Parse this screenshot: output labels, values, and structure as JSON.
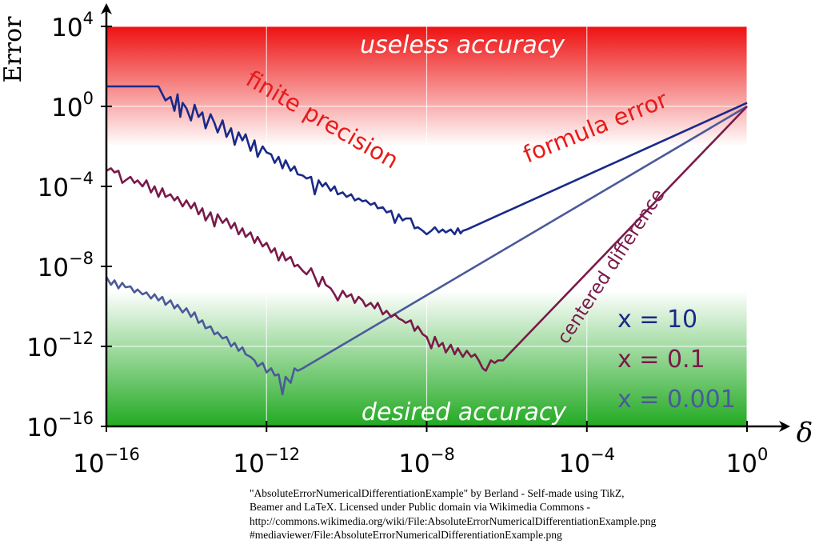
{
  "chart_data": {
    "type": "line",
    "title": "",
    "xlabel": "δ",
    "ylabel": "Error",
    "x_scale": "log",
    "y_scale": "log",
    "xlim": [
      1e-16,
      1
    ],
    "ylim": [
      1e-16,
      10000
    ],
    "x_ticks": [
      {
        "value": 1e-16,
        "base": "10",
        "exp": "−16"
      },
      {
        "value": 1e-12,
        "base": "10",
        "exp": "−12"
      },
      {
        "value": 1e-08,
        "base": "10",
        "exp": "−8"
      },
      {
        "value": 0.0001,
        "base": "10",
        "exp": "−4"
      },
      {
        "value": 1,
        "base": "10",
        "exp": "0"
      }
    ],
    "y_ticks": [
      {
        "value": 10000,
        "base": "10",
        "exp": "4"
      },
      {
        "value": 1,
        "base": "10",
        "exp": "0"
      },
      {
        "value": 0.0001,
        "base": "10",
        "exp": "−4"
      },
      {
        "value": 1e-08,
        "base": "10",
        "exp": "−8"
      },
      {
        "value": 1e-12,
        "base": "10",
        "exp": "−12"
      },
      {
        "value": 1e-16,
        "base": "10",
        "exp": "−16"
      }
    ],
    "grid": true,
    "background_gradient": {
      "top": "#ee1111",
      "middle": "#ffffff",
      "bottom": "#22aa22"
    },
    "series": [
      {
        "name": "x = 10",
        "color": "#1a2a88",
        "points": [
          [
            1e-16,
            10
          ],
          [
            2e-15,
            10
          ],
          [
            3e-15,
            2
          ],
          [
            4e-15,
            3
          ],
          [
            5e-15,
            0.6
          ],
          [
            6e-15,
            4
          ],
          [
            7e-15,
            0.3
          ],
          [
            8e-15,
            1.5
          ],
          [
            1e-14,
            0.8
          ],
          [
            1.3e-14,
            0.2
          ],
          [
            1.6e-14,
            1.2
          ],
          [
            2e-14,
            0.3
          ],
          [
            2.5e-14,
            0.5
          ],
          [
            3e-14,
            0.08
          ],
          [
            4e-14,
            0.4
          ],
          [
            5e-14,
            0.15
          ],
          [
            6e-14,
            0.05
          ],
          [
            8e-14,
            0.2
          ],
          [
            1e-13,
            0.03
          ],
          [
            1.3e-13,
            0.08
          ],
          [
            1.6e-13,
            0.012
          ],
          [
            2e-13,
            0.05
          ],
          [
            2.5e-13,
            0.02
          ],
          [
            3e-13,
            0.04
          ],
          [
            4e-13,
            0.006
          ],
          [
            5e-13,
            0.02
          ],
          [
            6e-13,
            0.003
          ],
          [
            8e-13,
            0.01
          ],
          [
            1e-12,
            0.005
          ],
          [
            1.3e-12,
            0.004
          ],
          [
            1.6e-12,
            0.0015
          ],
          [
            2e-12,
            0.003
          ],
          [
            2.5e-12,
            0.0008
          ],
          [
            3e-12,
            0.002
          ],
          [
            4e-12,
            0.0006
          ],
          [
            5e-12,
            0.001
          ],
          [
            6e-12,
            0.0004
          ],
          [
            8e-12,
            0.00035
          ],
          [
            1e-11,
            0.00025
          ],
          [
            1.3e-11,
            0.0003
          ],
          [
            1.6e-11,
            4e-05
          ],
          [
            2e-11,
            0.0002
          ],
          [
            2.5e-11,
            0.0001
          ],
          [
            3e-11,
            0.00015
          ],
          [
            4e-11,
            6e-05
          ],
          [
            5e-11,
            0.0001
          ],
          [
            6e-11,
            4e-05
          ],
          [
            8e-11,
            5e-05
          ],
          [
            1e-10,
            3e-05
          ],
          [
            1.3e-10,
            4e-05
          ],
          [
            1.6e-10,
            2e-05
          ],
          [
            2e-10,
            2.5e-05
          ],
          [
            2.5e-10,
            1.8e-05
          ],
          [
            3e-10,
            2e-05
          ],
          [
            4e-10,
            1.2e-05
          ],
          [
            5e-10,
            1.5e-05
          ],
          [
            6e-10,
            8e-06
          ],
          [
            8e-10,
            9e-06
          ],
          [
            1e-09,
            5e-06
          ],
          [
            1.3e-09,
            6e-06
          ],
          [
            1.6e-09,
            1.5e-06
          ],
          [
            2e-09,
            4e-06
          ],
          [
            2.5e-09,
            2e-06
          ],
          [
            3e-09,
            2.5e-06
          ],
          [
            4e-09,
            2.5e-06
          ],
          [
            5e-09,
            8e-07
          ],
          [
            6e-09,
            9e-07
          ],
          [
            8e-09,
            6e-07
          ],
          [
            1e-08,
            4e-07
          ],
          [
            1.3e-08,
            6e-07
          ],
          [
            1.6e-08,
            9e-07
          ],
          [
            2e-08,
            5e-07
          ],
          [
            2.5e-08,
            7e-07
          ],
          [
            3e-08,
            5e-07
          ],
          [
            4e-08,
            7e-07
          ],
          [
            5e-08,
            4e-07
          ],
          [
            6e-08,
            8e-07
          ],
          [
            7e-08,
            4.5e-07
          ],
          [
            8e-08,
            6e-07
          ],
          [
            1e-07,
            7e-07
          ],
          [
            1,
            1.5
          ]
        ]
      },
      {
        "name": "x = 0.1",
        "color": "#7a1a4a",
        "points": [
          [
            1e-16,
            0.0006
          ],
          [
            1.3e-16,
            0.0008
          ],
          [
            1.6e-16,
            0.0005
          ],
          [
            2e-16,
            0.0006
          ],
          [
            2.5e-16,
            0.00015
          ],
          [
            3e-16,
            0.0002
          ],
          [
            4e-16,
            0.0003
          ],
          [
            5e-16,
            0.00015
          ],
          [
            6e-16,
            0.0002
          ],
          [
            8e-16,
            0.0001
          ],
          [
            1e-15,
            0.0002
          ],
          [
            1.3e-15,
            5e-05
          ],
          [
            1.6e-15,
            0.0001
          ],
          [
            2e-15,
            3e-05
          ],
          [
            2.5e-15,
            8e-05
          ],
          [
            3e-15,
            3e-05
          ],
          [
            4e-15,
            4e-05
          ],
          [
            5e-15,
            2e-05
          ],
          [
            6e-15,
            3e-05
          ],
          [
            8e-15,
            1e-05
          ],
          [
            1e-14,
            2e-05
          ],
          [
            1.3e-14,
            8e-06
          ],
          [
            1.6e-14,
            1.5e-05
          ],
          [
            2e-14,
            4e-06
          ],
          [
            2.5e-14,
            8e-06
          ],
          [
            3e-14,
            2e-06
          ],
          [
            4e-14,
            5e-06
          ],
          [
            5e-14,
            1e-06
          ],
          [
            6e-14,
            4e-06
          ],
          [
            8e-14,
            1.5e-06
          ],
          [
            1e-13,
            2.5e-06
          ],
          [
            1.3e-13,
            8e-07
          ],
          [
            1.6e-13,
            1.5e-06
          ],
          [
            2e-13,
            4e-07
          ],
          [
            2.5e-13,
            8e-07
          ],
          [
            3e-13,
            3e-07
          ],
          [
            4e-13,
            5e-07
          ],
          [
            5e-13,
            1.5e-07
          ],
          [
            6e-13,
            3e-07
          ],
          [
            8e-13,
            1e-07
          ],
          [
            1e-12,
            1.5e-07
          ],
          [
            1.3e-12,
            5e-08
          ],
          [
            1.6e-12,
            8e-08
          ],
          [
            2e-12,
            2e-08
          ],
          [
            2.5e-12,
            5e-08
          ],
          [
            3e-12,
            2e-08
          ],
          [
            4e-12,
            3e-08
          ],
          [
            5e-12,
            1e-08
          ],
          [
            6e-12,
            1.2e-08
          ],
          [
            8e-12,
            6e-09
          ],
          [
            1e-11,
            4e-09
          ],
          [
            1.3e-11,
            8e-09
          ],
          [
            1.6e-11,
            3e-09
          ],
          [
            2e-11,
            1e-09
          ],
          [
            2.5e-11,
            3e-09
          ],
          [
            3e-11,
            1.2e-09
          ],
          [
            4e-11,
            8e-10
          ],
          [
            5e-11,
            4e-10
          ],
          [
            6e-11,
            2e-10
          ],
          [
            8e-11,
            6e-10
          ],
          [
            1e-10,
            3e-10
          ],
          [
            1.3e-10,
            4e-10
          ],
          [
            1.6e-10,
            1.5e-10
          ],
          [
            2e-10,
            3e-10
          ],
          [
            2.5e-10,
            2e-10
          ],
          [
            3e-10,
            1e-10
          ],
          [
            4e-10,
            1.5e-10
          ],
          [
            5e-10,
            8e-11
          ],
          [
            6e-10,
            1.5e-10
          ],
          [
            8e-10,
            4e-11
          ],
          [
            1e-09,
            6e-11
          ],
          [
            1.3e-09,
            3e-11
          ],
          [
            1.6e-09,
            4e-11
          ],
          [
            2e-09,
            2.5e-11
          ],
          [
            2.5e-09,
            2e-11
          ],
          [
            3e-09,
            1.5e-11
          ],
          [
            4e-09,
            2e-11
          ],
          [
            5e-09,
            6e-12
          ],
          [
            6e-09,
            1e-11
          ],
          [
            8e-09,
            4e-12
          ],
          [
            1e-08,
            3e-12
          ],
          [
            1.3e-08,
            8e-13
          ],
          [
            1.6e-08,
            3e-12
          ],
          [
            2e-08,
            1e-12
          ],
          [
            2.5e-08,
            1.5e-12
          ],
          [
            3e-08,
            5e-13
          ],
          [
            4e-08,
            1.2e-12
          ],
          [
            5e-08,
            4e-13
          ],
          [
            6e-08,
            8e-13
          ],
          [
            8e-08,
            3e-13
          ],
          [
            1e-07,
            6e-13
          ],
          [
            1.3e-07,
            3e-13
          ],
          [
            1.6e-07,
            4e-13
          ],
          [
            2e-07,
            2e-13
          ],
          [
            2.5e-07,
            8e-14
          ],
          [
            3e-07,
            6e-14
          ],
          [
            4e-07,
            2e-13
          ],
          [
            5e-07,
            1.5e-13
          ],
          [
            6e-07,
            2e-13
          ],
          [
            8e-07,
            2e-13
          ],
          [
            1,
            1
          ]
        ]
      },
      {
        "name": "x = 0.001",
        "color": "#4a5a9a",
        "points": [
          [
            1e-16,
            3e-09
          ],
          [
            1.3e-16,
            1.2e-09
          ],
          [
            1.6e-16,
            2e-09
          ],
          [
            2e-16,
            8e-10
          ],
          [
            2.5e-16,
            1.5e-09
          ],
          [
            3e-16,
            9e-10
          ],
          [
            4e-16,
            1e-09
          ],
          [
            5e-16,
            5e-10
          ],
          [
            6e-16,
            7e-10
          ],
          [
            8e-16,
            4e-10
          ],
          [
            1e-15,
            5e-10
          ],
          [
            1.3e-15,
            2.5e-10
          ],
          [
            1.6e-15,
            4e-10
          ],
          [
            2e-15,
            2e-10
          ],
          [
            2.5e-15,
            3e-10
          ],
          [
            3e-15,
            1.2e-10
          ],
          [
            4e-15,
            2e-10
          ],
          [
            5e-15,
            8e-11
          ],
          [
            6e-15,
            1.2e-10
          ],
          [
            8e-15,
            5e-11
          ],
          [
            1e-14,
            8e-11
          ],
          [
            1.3e-14,
            3e-11
          ],
          [
            1.6e-14,
            5e-11
          ],
          [
            2e-14,
            1.5e-11
          ],
          [
            2.5e-14,
            2e-11
          ],
          [
            3e-14,
            8e-12
          ],
          [
            4e-14,
            1e-11
          ],
          [
            5e-14,
            4e-12
          ],
          [
            6e-14,
            5e-12
          ],
          [
            8e-14,
            2.5e-12
          ],
          [
            1e-13,
            3e-12
          ],
          [
            1.3e-13,
            1e-12
          ],
          [
            1.6e-13,
            1.5e-12
          ],
          [
            2e-13,
            6e-13
          ],
          [
            2.5e-13,
            9e-13
          ],
          [
            3e-13,
            4e-13
          ],
          [
            4e-13,
            3e-13
          ],
          [
            5e-13,
            2e-13
          ],
          [
            6e-13,
            1e-13
          ],
          [
            8e-13,
            1.5e-13
          ],
          [
            1e-12,
            5e-14
          ],
          [
            1.3e-12,
            8e-14
          ],
          [
            1.6e-12,
            3.5e-14
          ],
          [
            2e-12,
            4e-14
          ],
          [
            2.5e-12,
            4e-15
          ],
          [
            3e-12,
            3e-14
          ],
          [
            4e-12,
            1.5e-14
          ],
          [
            5e-12,
            8e-14
          ],
          [
            6e-12,
            6e-14
          ],
          [
            8e-12,
            8e-14
          ],
          [
            1,
            1
          ]
        ]
      }
    ],
    "annotations": [
      {
        "text": "useless accuracy",
        "color": "#ffffff"
      },
      {
        "text": "finite precision",
        "color": "#e81a1a"
      },
      {
        "text": "formula error",
        "color": "#e81a1a"
      },
      {
        "text": "centered difference",
        "color": "#7a1a4a"
      },
      {
        "text": "desired accuracy",
        "color": "#ffffff"
      }
    ],
    "legend_position": "bottom-right",
    "legend_entries": [
      {
        "label": "x = 10",
        "color": "#1a2a88"
      },
      {
        "label": "x = 0.1",
        "color": "#7a1a4a"
      },
      {
        "label": "x = 0.001",
        "color": "#4a5a9a"
      }
    ]
  },
  "credit": [
    "\"AbsoluteErrorNumericalDifferentiationExample\" by Berland - Self-made using TikZ,",
    "Beamer and LaTeX. Licensed under Public domain via Wikimedia Commons -",
    "http://commons.wikimedia.org/wiki/File:AbsoluteErrorNumericalDifferentiationExample.png",
    "#mediaviewer/File:AbsoluteErrorNumericalDifferentiationExample.png"
  ]
}
